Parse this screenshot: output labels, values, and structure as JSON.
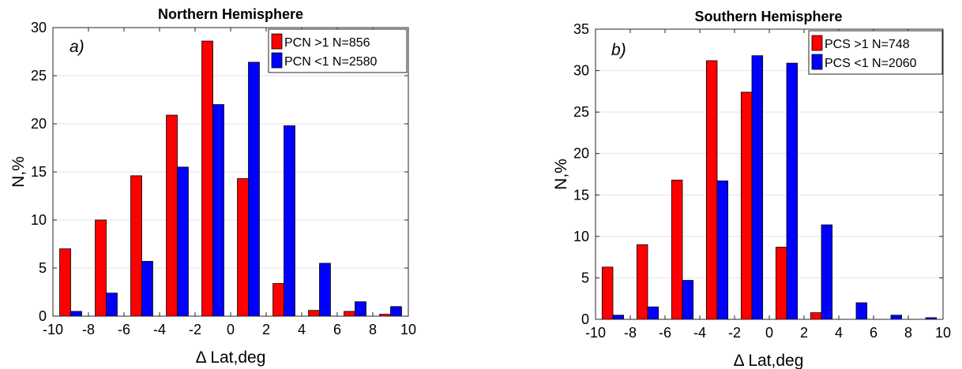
{
  "chart_data": [
    {
      "type": "bar",
      "title": "Northern Hemisphere",
      "panel_label": "a)",
      "xlabel": "Δ Lat,deg",
      "ylabel": "N,%",
      "xlim": [
        -10,
        10
      ],
      "ylim": [
        0,
        30
      ],
      "xticks": [
        -10,
        -8,
        -6,
        -4,
        -2,
        0,
        2,
        4,
        6,
        8,
        10
      ],
      "yticks": [
        0,
        5,
        10,
        15,
        20,
        25,
        30
      ],
      "grid": "y",
      "legend_position": "top-right",
      "centers": [
        -9,
        -7,
        -5,
        -3,
        -1,
        1,
        3,
        5,
        7,
        9
      ],
      "series": [
        {
          "name": "PCN >1  N=856",
          "color": "#ff0000",
          "values": [
            7.0,
            10.0,
            14.6,
            20.9,
            28.6,
            14.3,
            3.4,
            0.6,
            0.5,
            0.2
          ]
        },
        {
          "name": "PCN <1  N=2580",
          "color": "#0000ff",
          "values": [
            0.5,
            2.4,
            5.7,
            15.5,
            22.0,
            26.4,
            19.8,
            5.5,
            1.5,
            1.0
          ]
        }
      ]
    },
    {
      "type": "bar",
      "title": "Southern Hemisphere",
      "panel_label": "b)",
      "xlabel": "Δ Lat,deg",
      "ylabel": "N,%",
      "xlim": [
        -10,
        10
      ],
      "ylim": [
        0,
        35
      ],
      "xticks": [
        -10,
        -8,
        -6,
        -4,
        -2,
        0,
        2,
        4,
        6,
        8,
        10
      ],
      "yticks": [
        0,
        5,
        10,
        15,
        20,
        25,
        30,
        35
      ],
      "grid": "y",
      "legend_position": "top-right",
      "centers": [
        -9,
        -7,
        -5,
        -3,
        -1,
        1,
        3,
        5,
        7,
        9
      ],
      "series": [
        {
          "name": "PCS >1  N=748",
          "color": "#ff0000",
          "values": [
            6.3,
            9.0,
            16.8,
            31.2,
            27.4,
            8.7,
            0.8,
            0.0,
            0.0,
            0.0
          ]
        },
        {
          "name": "PCS <1  N=2060",
          "color": "#0000ff",
          "values": [
            0.5,
            1.5,
            4.7,
            16.7,
            31.8,
            30.9,
            11.4,
            2.0,
            0.5,
            0.2
          ]
        }
      ]
    }
  ]
}
